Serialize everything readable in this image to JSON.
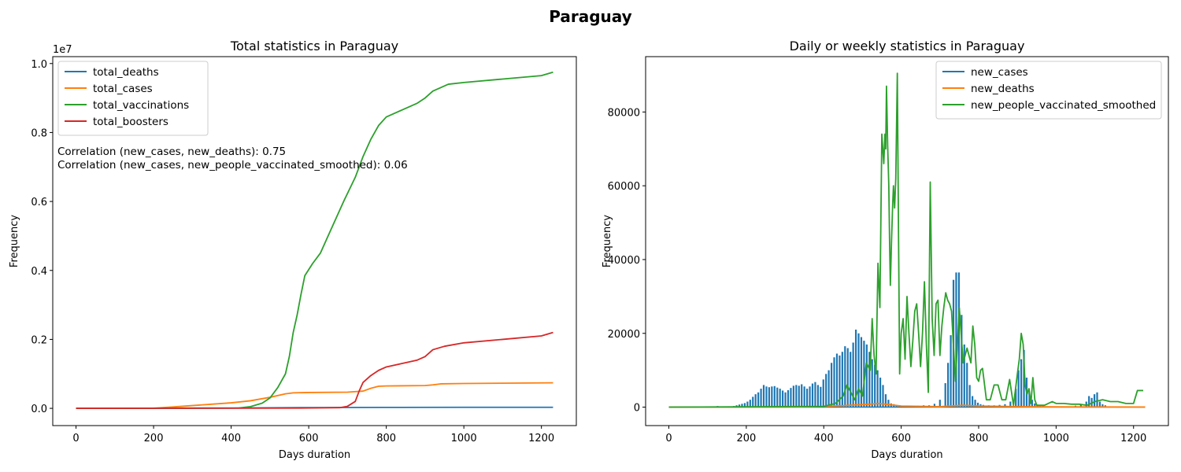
{
  "suptitle": "Paraguay",
  "chart_data": [
    {
      "type": "line",
      "title": "Total statistics in Paraguay",
      "xlabel": "Days duration",
      "ylabel": "Frequency",
      "offset_text": "1e7",
      "xlim": [
        -60,
        1290
      ],
      "ylim": [
        -0.05,
        1.02
      ],
      "xticks": [
        0,
        200,
        400,
        600,
        800,
        1000,
        1200
      ],
      "yticks": [
        0.0,
        0.2,
        0.4,
        0.6,
        0.8,
        1.0
      ],
      "ytick_labels": [
        "0.0",
        "0.2",
        "0.4",
        "0.6",
        "0.8",
        "1.0"
      ],
      "legend_position": "upper-left",
      "annotations": [
        "Correlation (new_cases, new_deaths): 0.75",
        "Correlation (new_cases, new_people_vaccinated_smoothed): 0.06"
      ],
      "series": [
        {
          "name": "total_deaths",
          "color": "#1f77b4",
          "x": [
            0,
            200,
            400,
            500,
            600,
            700,
            800,
            1000,
            1230
          ],
          "y": [
            0,
            0.0003,
            0.0008,
            0.0015,
            0.0022,
            0.0025,
            0.0028,
            0.003,
            0.0031
          ]
        },
        {
          "name": "total_cases",
          "color": "#ff7f0e",
          "x": [
            0,
            200,
            250,
            300,
            350,
            400,
            450,
            500,
            540,
            560,
            600,
            700,
            740,
            760,
            780,
            800,
            900,
            920,
            940,
            1000,
            1100,
            1230
          ],
          "y": [
            0,
            0.0005,
            0.004,
            0.008,
            0.012,
            0.016,
            0.022,
            0.032,
            0.042,
            0.045,
            0.046,
            0.047,
            0.05,
            0.058,
            0.064,
            0.065,
            0.066,
            0.068,
            0.071,
            0.072,
            0.073,
            0.074
          ]
        },
        {
          "name": "total_vaccinations",
          "color": "#2ca02c",
          "x": [
            0,
            420,
            450,
            480,
            500,
            520,
            540,
            550,
            560,
            570,
            580,
            590,
            610,
            630,
            650,
            670,
            690,
            720,
            740,
            760,
            780,
            800,
            840,
            880,
            900,
            920,
            940,
            960,
            1000,
            1100,
            1200,
            1230
          ],
          "y": [
            0,
            0.001,
            0.005,
            0.015,
            0.03,
            0.06,
            0.1,
            0.15,
            0.22,
            0.27,
            0.33,
            0.385,
            0.42,
            0.45,
            0.5,
            0.55,
            0.6,
            0.67,
            0.73,
            0.78,
            0.82,
            0.845,
            0.865,
            0.885,
            0.9,
            0.92,
            0.93,
            0.94,
            0.945,
            0.955,
            0.965,
            0.975
          ]
        },
        {
          "name": "total_boosters",
          "color": "#d62728",
          "x": [
            0,
            400,
            600,
            680,
            700,
            720,
            730,
            740,
            760,
            780,
            800,
            840,
            880,
            900,
            920,
            950,
            1000,
            1100,
            1200,
            1230
          ],
          "y": [
            0,
            0.0005,
            0.001,
            0.002,
            0.006,
            0.02,
            0.05,
            0.075,
            0.095,
            0.11,
            0.12,
            0.13,
            0.14,
            0.15,
            0.17,
            0.18,
            0.19,
            0.2,
            0.21,
            0.22
          ]
        }
      ]
    },
    {
      "type": "line",
      "title": "Daily or weekly statistics in Paraguay",
      "xlabel": "Days duration",
      "ylabel": "Frequency",
      "xlim": [
        -60,
        1290
      ],
      "ylim": [
        -5000,
        95000
      ],
      "xticks": [
        0,
        200,
        400,
        600,
        800,
        1000,
        1200
      ],
      "yticks": [
        0,
        20000,
        40000,
        60000,
        80000
      ],
      "ytick_labels": [
        "0",
        "20000",
        "40000",
        "60000",
        "80000"
      ],
      "legend_position": "upper-right",
      "series": [
        {
          "name": "new_cases",
          "color": "#1f77b4",
          "style": "weekly-spikes",
          "x": [
            126,
            168,
            175,
            182,
            189,
            196,
            203,
            210,
            217,
            224,
            231,
            238,
            245,
            252,
            259,
            266,
            273,
            280,
            287,
            294,
            301,
            308,
            315,
            322,
            329,
            336,
            343,
            350,
            357,
            364,
            371,
            378,
            385,
            392,
            399,
            406,
            413,
            420,
            427,
            434,
            441,
            448,
            455,
            462,
            469,
            476,
            483,
            490,
            497,
            504,
            511,
            518,
            525,
            532,
            539,
            546,
            553,
            560,
            567,
            574,
            581,
            588,
            595,
            602,
            609,
            616,
            623,
            630,
            644,
            658,
            672,
            686,
            700,
            714,
            721,
            728,
            735,
            742,
            749,
            756,
            763,
            770,
            777,
            784,
            791,
            798,
            805,
            812,
            826,
            840,
            854,
            868,
            882,
            896,
            903,
            910,
            917,
            924,
            931,
            938,
            945,
            952,
            959,
            966,
            1050,
            1064,
            1078,
            1085,
            1092,
            1099,
            1106,
            1113,
            1120,
            1127
          ],
          "y": [
            300,
            300,
            500,
            700,
            900,
            1100,
            1500,
            2000,
            2800,
            3500,
            4000,
            5000,
            6000,
            5600,
            5400,
            5600,
            5700,
            5300,
            5000,
            4500,
            4000,
            4600,
            5200,
            5800,
            6000,
            5800,
            6200,
            5600,
            5000,
            5600,
            6400,
            6800,
            6000,
            5500,
            7500,
            9000,
            10000,
            12000,
            13500,
            14500,
            14000,
            15000,
            16500,
            16000,
            15000,
            17500,
            21000,
            20000,
            19000,
            18000,
            17000,
            15000,
            13000,
            11500,
            10000,
            8000,
            6000,
            3500,
            2000,
            1000,
            800,
            600,
            500,
            400,
            300,
            300,
            300,
            300,
            400,
            500,
            500,
            900,
            2000,
            6500,
            12000,
            19500,
            34500,
            36500,
            36500,
            25000,
            17000,
            12000,
            6000,
            3000,
            2000,
            1200,
            800,
            600,
            500,
            500,
            600,
            800,
            1500,
            5000,
            10000,
            13000,
            15500,
            8000,
            4000,
            2000,
            1000,
            700,
            500,
            400,
            400,
            800,
            1500,
            3000,
            2500,
            3500,
            4000,
            1500,
            800,
            500
          ]
        },
        {
          "name": "new_deaths",
          "color": "#ff7f0e",
          "x": [
            0,
            300,
            400,
            450,
            480,
            520,
            540,
            560,
            600,
            700,
            760,
            800,
            900,
            1000,
            1230
          ],
          "y": [
            0,
            20,
            200,
            400,
            600,
            800,
            1000,
            800,
            300,
            150,
            500,
            300,
            150,
            80,
            20
          ]
        },
        {
          "name": "new_people_vaccinated_smoothed",
          "color": "#2ca02c",
          "x": [
            0,
            400,
            430,
            450,
            460,
            470,
            480,
            490,
            500,
            510,
            520,
            525,
            530,
            535,
            540,
            545,
            550,
            555,
            558,
            560,
            562,
            565,
            568,
            570,
            572,
            575,
            578,
            580,
            583,
            586,
            590,
            593,
            596,
            600,
            605,
            610,
            615,
            620,
            625,
            630,
            635,
            640,
            645,
            650,
            655,
            660,
            665,
            670,
            675,
            680,
            685,
            690,
            695,
            700,
            705,
            710,
            715,
            720,
            725,
            730,
            740,
            750,
            760,
            770,
            780,
            785,
            790,
            795,
            800,
            805,
            810,
            820,
            830,
            840,
            850,
            860,
            870,
            880,
            890,
            900,
            905,
            910,
            915,
            920,
            925,
            930,
            935,
            940,
            945,
            950,
            960,
            970,
            980,
            990,
            1000,
            1020,
            1040,
            1060,
            1080,
            1100,
            1120,
            1140,
            1160,
            1180,
            1190,
            1200,
            1210,
            1220,
            1225
          ],
          "y": [
            0,
            200,
            1000,
            3000,
            6000,
            4000,
            2000,
            5000,
            3000,
            12000,
            10000,
            24000,
            14000,
            9000,
            39000,
            27000,
            74000,
            66000,
            74000,
            70000,
            87000,
            71000,
            60000,
            45000,
            33000,
            45000,
            55000,
            60000,
            54000,
            62000,
            90500,
            48000,
            9000,
            20000,
            24000,
            13000,
            30000,
            20000,
            11000,
            18000,
            26000,
            28000,
            20000,
            11000,
            20000,
            34000,
            17000,
            4000,
            61000,
            24000,
            14000,
            28000,
            29000,
            14000,
            22000,
            27000,
            31000,
            29000,
            28000,
            26000,
            7000,
            27000,
            12000,
            16000,
            12000,
            22000,
            17000,
            8000,
            7000,
            10000,
            10500,
            2000,
            2000,
            6000,
            6000,
            2000,
            2000,
            7500,
            500,
            9000,
            13000,
            20000,
            17000,
            6000,
            3500,
            5000,
            1000,
            8000,
            2000,
            500,
            500,
            500,
            1000,
            1500,
            1000,
            1000,
            800,
            800,
            500,
            1500,
            2000,
            1500,
            1500,
            1000,
            1000,
            1000,
            4500,
            4500,
            4500
          ]
        }
      ]
    }
  ]
}
